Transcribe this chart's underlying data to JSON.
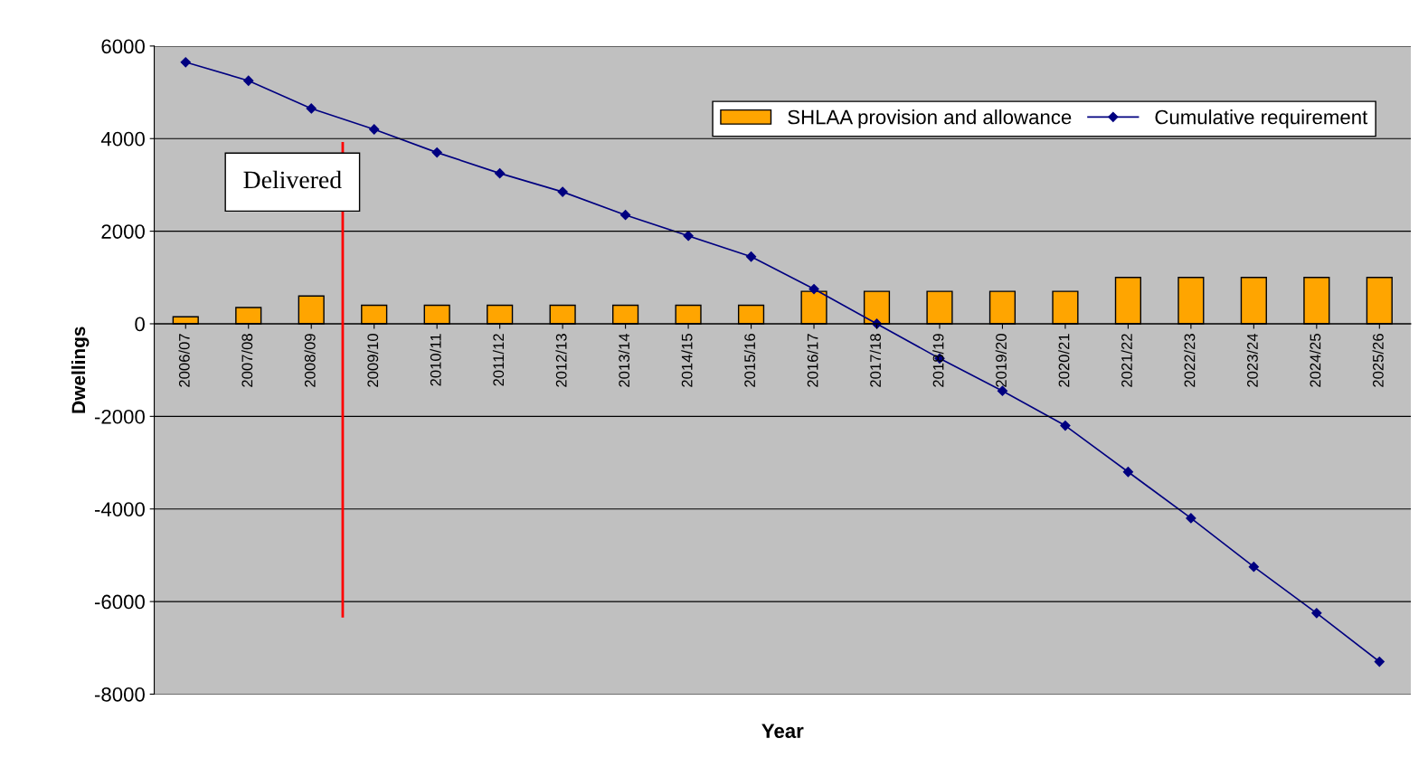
{
  "chart_data": {
    "type": "bar",
    "xlabel": "Year",
    "ylabel": "Dwellings",
    "categories": [
      "2006/07",
      "2007/08",
      "2008/09",
      "2009/10",
      "2010/11",
      "2011/12",
      "2012/13",
      "2013/14",
      "2014/15",
      "2015/16",
      "2016/17",
      "2017/18",
      "2018/19",
      "2019/20",
      "2020/21",
      "2021/22",
      "2022/23",
      "2023/24",
      "2024/25",
      "2025/26"
    ],
    "series": [
      {
        "name": "SHLAA provision and allowance",
        "color": "#ffa500",
        "values": [
          150,
          350,
          600,
          400,
          400,
          400,
          400,
          400,
          400,
          400,
          700,
          700,
          700,
          700,
          700,
          1000,
          1000,
          1000,
          1000,
          1000
        ]
      },
      {
        "name": "Cumulative requirement",
        "type": "line",
        "color": "#000080",
        "marker": "diamond",
        "values": [
          5650,
          5250,
          4650,
          4200,
          3700,
          3250,
          2850,
          2350,
          1900,
          1450,
          750,
          0,
          -750,
          -1450,
          -2200,
          -3200,
          -4200,
          -5250,
          -6250,
          -7300
        ]
      }
    ],
    "ylim": [
      -8000,
      6000
    ],
    "yticks": [
      -8000,
      -6000,
      -4000,
      -2000,
      0,
      2000,
      4000,
      6000
    ],
    "grid": "y",
    "legend": "top right",
    "annotations": [
      "Delivered"
    ]
  }
}
